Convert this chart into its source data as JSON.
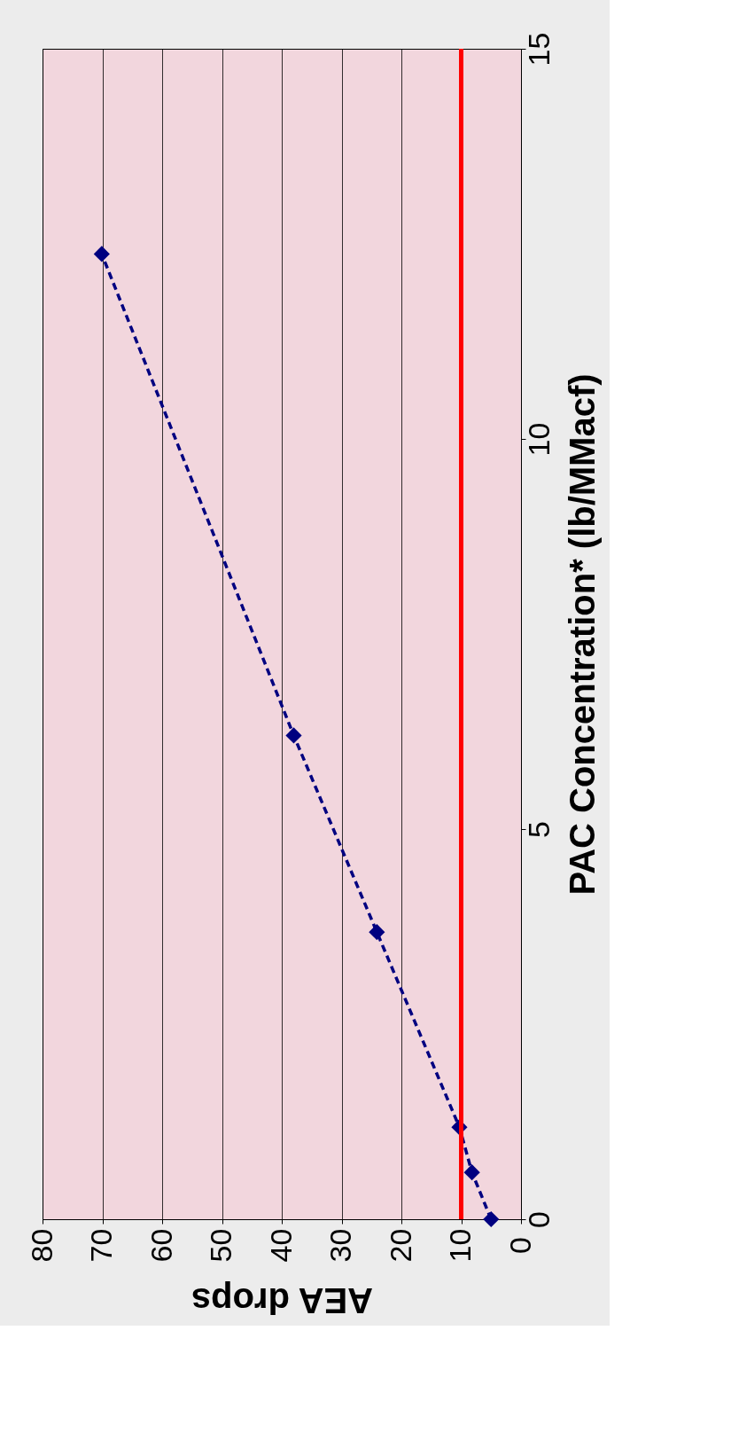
{
  "chart_data": {
    "type": "line",
    "xlabel": "AEA drops",
    "ylabel": "PAC Concentration* (lb/MMacf)",
    "x": [
      5,
      8.2,
      10.3,
      24.1,
      38,
      70.1
    ],
    "series": [
      {
        "color": "#000080",
        "values": [
          0,
          0.6,
          1.18,
          3.68,
          6.2,
          12.37
        ]
      }
    ],
    "xlim": [
      80,
      0
    ],
    "xticks": [
      0,
      10,
      20,
      30,
      40,
      50,
      60,
      70,
      80
    ],
    "ylim": [
      0,
      15
    ],
    "yticks": [
      0,
      5,
      10,
      15
    ],
    "grid": "x",
    "marker": "diamond",
    "line_style": "dashed",
    "ref_lines": [
      {
        "axis": "x",
        "value": 10,
        "color": "#ff0000",
        "line_style": "solid"
      }
    ]
  }
}
